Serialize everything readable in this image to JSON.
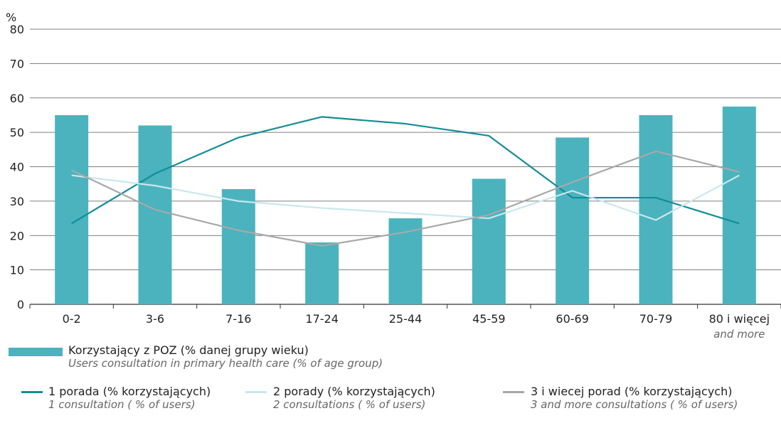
{
  "chart_data": {
    "type": "bar",
    "ylabel": "%",
    "ylim": [
      0,
      80
    ],
    "yticks": [
      0,
      10,
      20,
      30,
      40,
      50,
      60,
      70,
      80
    ],
    "grid": "horizontal",
    "categories": [
      "0-2",
      "3-6",
      "7-16",
      "17-24",
      "25-44",
      "45-59",
      "60-69",
      "70-79",
      "80 i więcej"
    ],
    "category_sublabels": [
      "",
      "",
      "",
      "",
      "",
      "",
      "",
      "",
      "and more"
    ],
    "series": [
      {
        "type": "bar",
        "name": "Korzystający z POZ (% danej grupy wieku)",
        "name_en": "Users consultation  in primary health care (% of age group)",
        "color": "#4bb3be",
        "values": [
          55,
          52,
          33.5,
          18,
          25,
          36.5,
          48.5,
          55,
          57.5
        ]
      },
      {
        "type": "line",
        "name": "1 porada (% korzystających)",
        "name_en": "1 consultation ( % of users)",
        "color": "#138d96",
        "values": [
          23.5,
          38,
          48.5,
          54.5,
          52.5,
          49,
          31,
          31,
          23.5
        ]
      },
      {
        "type": "line",
        "name": "2 porady (% korzystających)",
        "name_en": "2 consultations ( % of users)",
        "color": "#c9e7ec",
        "values": [
          37.5,
          34.5,
          30,
          28,
          26.5,
          25,
          33,
          24.5,
          37.5
        ]
      },
      {
        "type": "line",
        "name": "3 i wiecej porad (% korzystających)",
        "name_en": "3 and more consultations ( % of users)",
        "color": "#a8a8aa",
        "values": [
          39,
          27.5,
          21.5,
          17,
          21,
          26,
          35.5,
          44.5,
          38.5
        ]
      }
    ],
    "legend_position": "bottom-left"
  }
}
